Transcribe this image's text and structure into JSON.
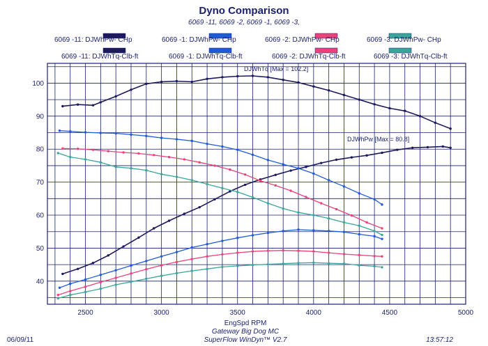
{
  "header": {
    "title": "Dyno Comparison",
    "subtitle": "6069 -11, 6069 -2, 6069 -1, 6069 -3,"
  },
  "legend": [
    {
      "label": "6069 -11: DJWhPw- CHp",
      "color": "#1c1a5c",
      "pattern": "solid"
    },
    {
      "label": "6069 -1: DJWhPw- CHp",
      "color": "#1f5bd6",
      "pattern": "solid"
    },
    {
      "label": "6069 -2: DJWhPw- CHp",
      "color": "#e8447a",
      "pattern": "solid"
    },
    {
      "label": "6069 -3: DJWhPw- CHp",
      "color": "#3aa69a",
      "pattern": "hatched"
    },
    {
      "label": "6069 -11: DJWhTq-Clb-ft",
      "color": "#1c1a5c",
      "pattern": "solid"
    },
    {
      "label": "6069 -1: DJWhTq-Clb-ft",
      "color": "#1f5bd6",
      "pattern": "solid"
    },
    {
      "label": "6069 -2: DJWhTq-Clb-ft",
      "color": "#e8447a",
      "pattern": "solid"
    },
    {
      "label": "6069 -3: DJWhTq-Clb-ft",
      "color": "#3aa69a",
      "pattern": "hatched"
    }
  ],
  "annotations": {
    "torque_max": "DJWhTq [Max = 102.2]",
    "power_max": "DJWhPw [Max = 80.8]"
  },
  "footer": {
    "date": "06/09/11",
    "line1": "Gateway Big Dog MC",
    "line2": "SuperFlow WinDyn™ V2.7",
    "time": "13:57:12"
  },
  "chart_data": {
    "type": "line",
    "title": "Dyno Comparison",
    "subtitle": "6069 -11, 6069 -2, 6069 -1, 6069 -3,",
    "xlabel": "EngSpd  RPM",
    "ylabel": "",
    "xlim": [
      2250,
      5000
    ],
    "ylim": [
      33,
      106
    ],
    "x_ticks": [
      2500,
      3000,
      3500,
      4000,
      4500,
      5000
    ],
    "y_ticks": [
      40,
      50,
      60,
      70,
      80,
      90,
      100
    ],
    "grid": true,
    "series": [
      {
        "name": "6069 -11: DJWhTq-Clb-ft",
        "color": "#1c1a5c",
        "x": [
          2350,
          2450,
          2550,
          2600,
          2700,
          2800,
          2900,
          3000,
          3100,
          3200,
          3300,
          3400,
          3500,
          3600,
          3700,
          3800,
          3900,
          4000,
          4100,
          4200,
          4300,
          4400,
          4500,
          4600,
          4700,
          4800,
          4900
        ],
        "y": [
          93.0,
          93.5,
          93.3,
          94.2,
          96.0,
          98.0,
          99.8,
          100.4,
          100.6,
          100.4,
          101.3,
          101.8,
          102.1,
          102.2,
          101.8,
          101.0,
          100.2,
          99.0,
          97.8,
          96.4,
          95.0,
          93.6,
          92.4,
          91.6,
          90.0,
          88.0,
          86.2
        ]
      },
      {
        "name": "6069 -11: DJWhPw- CHp",
        "color": "#1c1a5c",
        "x": [
          2350,
          2450,
          2550,
          2650,
          2750,
          2850,
          2950,
          3050,
          3150,
          3250,
          3350,
          3450,
          3550,
          3650,
          3750,
          3850,
          3950,
          4050,
          4150,
          4250,
          4350,
          4450,
          4550,
          4650,
          4750,
          4850,
          4900
        ],
        "y": [
          42.2,
          43.7,
          45.5,
          47.8,
          50.5,
          53.2,
          56.0,
          58.3,
          60.4,
          62.4,
          64.8,
          67.2,
          69.2,
          70.8,
          72.2,
          73.5,
          74.6,
          75.8,
          76.8,
          77.5,
          78.1,
          78.9,
          79.8,
          80.4,
          80.6,
          80.8,
          80.4
        ]
      },
      {
        "name": "6069 -1: DJWhTq-Clb-ft",
        "color": "#1f5bd6",
        "x": [
          2330,
          2400,
          2500,
          2600,
          2700,
          2800,
          2900,
          3000,
          3100,
          3200,
          3300,
          3400,
          3500,
          3600,
          3700,
          3800,
          3900,
          4000,
          4100,
          4200,
          4300,
          4400,
          4450
        ],
        "y": [
          85.6,
          85.4,
          85.1,
          84.9,
          84.8,
          84.4,
          84.0,
          83.4,
          83.0,
          82.5,
          81.6,
          80.8,
          79.8,
          78.3,
          76.7,
          75.4,
          74.2,
          72.6,
          70.6,
          68.7,
          66.6,
          64.8,
          63.2
        ]
      },
      {
        "name": "6069 -1: DJWhPw- CHp",
        "color": "#1f5bd6",
        "x": [
          2330,
          2400,
          2500,
          2600,
          2700,
          2800,
          2900,
          3000,
          3100,
          3200,
          3300,
          3400,
          3500,
          3600,
          3700,
          3800,
          3900,
          4000,
          4100,
          4200,
          4300,
          4400,
          4450
        ],
        "y": [
          38.0,
          39.2,
          40.5,
          41.9,
          43.3,
          44.7,
          46.1,
          47.5,
          48.8,
          50.2,
          51.2,
          52.2,
          53.1,
          53.9,
          54.6,
          55.2,
          55.6,
          55.4,
          55.2,
          54.9,
          54.2,
          53.6,
          52.8
        ]
      },
      {
        "name": "6069 -2: DJWhTq-Clb-ft",
        "color": "#e8447a",
        "x": [
          2350,
          2450,
          2550,
          2650,
          2750,
          2850,
          2950,
          3050,
          3150,
          3250,
          3350,
          3450,
          3550,
          3650,
          3750,
          3850,
          3950,
          4050,
          4150,
          4250,
          4350,
          4450
        ],
        "y": [
          80.2,
          80.1,
          79.8,
          79.4,
          79.0,
          78.7,
          78.2,
          77.6,
          76.9,
          76.0,
          75.0,
          73.8,
          72.3,
          70.4,
          69.0,
          67.4,
          65.5,
          63.6,
          61.8,
          59.9,
          57.8,
          56.0
        ]
      },
      {
        "name": "6069 -2: DJWhPw- CHp",
        "color": "#e8447a",
        "x": [
          2320,
          2400,
          2500,
          2600,
          2700,
          2800,
          2900,
          3000,
          3100,
          3200,
          3300,
          3400,
          3500,
          3600,
          3700,
          3800,
          3900,
          4000,
          4100,
          4200,
          4300,
          4400,
          4450
        ],
        "y": [
          35.8,
          37.0,
          38.3,
          39.7,
          41.0,
          42.3,
          43.6,
          44.8,
          45.8,
          46.7,
          47.5,
          48.1,
          48.6,
          49.0,
          49.2,
          49.3,
          49.2,
          49.0,
          48.6,
          48.2,
          47.9,
          47.6,
          47.5
        ]
      },
      {
        "name": "6069 -3: DJWhTq-Clb-ft",
        "color": "#3aa69a",
        "x": [
          2320,
          2400,
          2500,
          2600,
          2700,
          2800,
          2900,
          3000,
          3100,
          3200,
          3300,
          3400,
          3500,
          3600,
          3700,
          3800,
          3900,
          4000,
          4100,
          4200,
          4300,
          4400,
          4450
        ],
        "y": [
          78.8,
          77.6,
          76.9,
          76.0,
          74.6,
          74.2,
          73.6,
          72.4,
          71.6,
          70.6,
          69.4,
          68.2,
          67.0,
          65.4,
          63.6,
          62.0,
          60.8,
          60.0,
          59.0,
          57.8,
          56.8,
          55.2,
          54.0
        ]
      },
      {
        "name": "6069 -3: DJWhPw- CHp",
        "color": "#3aa69a",
        "x": [
          2320,
          2400,
          2500,
          2600,
          2700,
          2800,
          2900,
          3000,
          3100,
          3200,
          3300,
          3400,
          3500,
          3600,
          3700,
          3800,
          3900,
          4000,
          4100,
          4200,
          4300,
          4400,
          4450
        ],
        "y": [
          34.8,
          35.8,
          36.7,
          37.7,
          38.9,
          39.8,
          40.7,
          41.6,
          42.4,
          43.1,
          43.7,
          44.3,
          44.6,
          44.9,
          45.1,
          45.3,
          45.5,
          45.6,
          45.4,
          45.3,
          44.8,
          44.5,
          44.2
        ]
      }
    ]
  }
}
